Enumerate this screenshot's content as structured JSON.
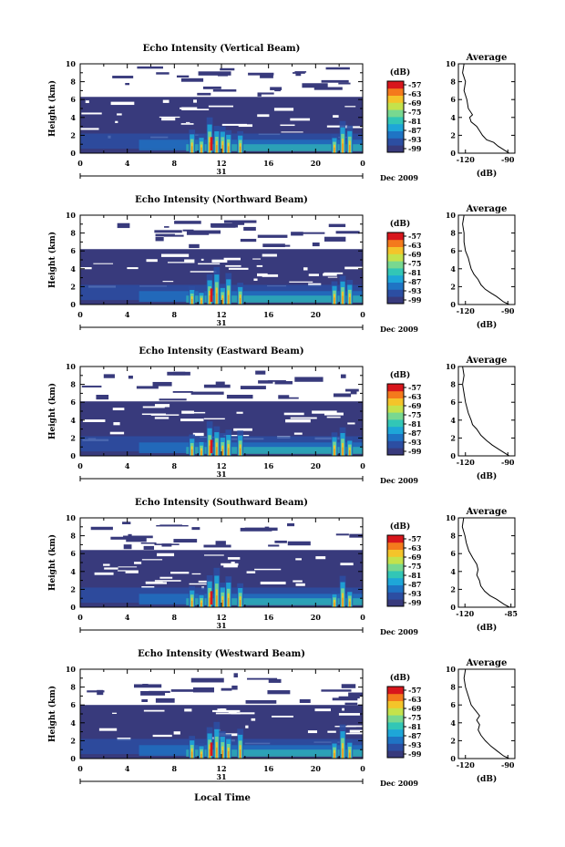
{
  "chart_data": {
    "type": "heatmap",
    "shared": {
      "ylabel": "Height (km)",
      "y_ticks": [
        "0",
        "2",
        "4",
        "6",
        "8",
        "10"
      ],
      "ylim": [
        0,
        10
      ],
      "x_ticks": [
        "0",
        "4",
        "8",
        "12",
        "16",
        "20",
        "0"
      ],
      "xlim": [
        0,
        24
      ],
      "day_label": "31",
      "date_label": "Dec 2009",
      "colorbar_unit": "(dB)",
      "colorbar_ticks": [
        "-57",
        "-63",
        "-69",
        "-75",
        "-81",
        "-87",
        "-93",
        "-99"
      ],
      "colors": [
        "#383a7c",
        "#2c4ea2",
        "#1f74c4",
        "#1ea6d8",
        "#32c6b6",
        "#78d890",
        "#c4e24c",
        "#f4c42a",
        "#f47a1c",
        "#d8161c"
      ],
      "avg_title": "Average",
      "avg_xlabel": "(dB)",
      "bottom_xlabel": "Local Time"
    },
    "panels": [
      {
        "title": "Echo Intensity (Vertical Beam)",
        "top_km": 6.3,
        "avg_xticks": [
          "-120",
          "-90"
        ],
        "avg_xlim": [
          -125,
          -85
        ],
        "avg_profile": [
          [
            -89,
            0
          ],
          [
            -92,
            0.3
          ],
          [
            -97,
            0.8
          ],
          [
            -100,
            1.2
          ],
          [
            -105,
            1.5
          ],
          [
            -108,
            2.0
          ],
          [
            -110,
            2.5
          ],
          [
            -112,
            3.0
          ],
          [
            -116,
            3.5
          ],
          [
            -117,
            4.0
          ],
          [
            -115,
            4.3
          ],
          [
            -118,
            5.0
          ],
          [
            -119,
            6.0
          ],
          [
            -121,
            7.0
          ],
          [
            -120,
            8.0
          ],
          [
            -122,
            9.0
          ],
          [
            -121,
            10.0
          ]
        ]
      },
      {
        "title": "Echo Intensity (Northward Beam)",
        "top_km": 6.2,
        "avg_xticks": [
          "-120",
          "-90"
        ],
        "avg_xlim": [
          -125,
          -85
        ],
        "avg_profile": [
          [
            -89,
            0
          ],
          [
            -93,
            0.3
          ],
          [
            -98,
            0.9
          ],
          [
            -102,
            1.3
          ],
          [
            -106,
            1.7
          ],
          [
            -109,
            2.2
          ],
          [
            -111,
            2.8
          ],
          [
            -114,
            3.4
          ],
          [
            -116,
            4.0
          ],
          [
            -117,
            4.6
          ],
          [
            -118,
            5.2
          ],
          [
            -120,
            6.0
          ],
          [
            -121,
            7.0
          ],
          [
            -121,
            8.0
          ],
          [
            -122,
            9.0
          ],
          [
            -121,
            10.0
          ]
        ]
      },
      {
        "title": "Echo Intensity (Eastward Beam)",
        "top_km": 6.1,
        "avg_xticks": [
          "-120",
          "-90"
        ],
        "avg_xlim": [
          -125,
          -85
        ],
        "avg_profile": [
          [
            -89,
            0
          ],
          [
            -92,
            0.3
          ],
          [
            -97,
            0.8
          ],
          [
            -101,
            1.2
          ],
          [
            -105,
            1.7
          ],
          [
            -109,
            2.3
          ],
          [
            -112,
            3.0
          ],
          [
            -115,
            3.5
          ],
          [
            -116,
            4.0
          ],
          [
            -118,
            4.8
          ],
          [
            -120,
            6.0
          ],
          [
            -121,
            7.0
          ],
          [
            -122,
            8.0
          ],
          [
            -121,
            9.0
          ],
          [
            -122,
            10.0
          ]
        ]
      },
      {
        "title": "Echo Intensity (Southward Beam)",
        "top_km": 6.4,
        "avg_xticks": [
          "-120",
          "-85"
        ],
        "avg_xlim": [
          -125,
          -82
        ],
        "avg_profile": [
          [
            -86,
            0
          ],
          [
            -90,
            0.3
          ],
          [
            -96,
            0.9
          ],
          [
            -101,
            1.3
          ],
          [
            -105,
            1.8
          ],
          [
            -108,
            2.4
          ],
          [
            -109,
            3.0
          ],
          [
            -111,
            3.6
          ],
          [
            -110,
            4.2
          ],
          [
            -111,
            4.8
          ],
          [
            -114,
            5.5
          ],
          [
            -117,
            6.3
          ],
          [
            -119,
            7.2
          ],
          [
            -120,
            8.0
          ],
          [
            -122,
            9.0
          ],
          [
            -121,
            10.0
          ]
        ]
      },
      {
        "title": "Echo Intensity (Westward Beam)",
        "top_km": 6.0,
        "avg_xticks": [
          "-120",
          "-90"
        ],
        "avg_xlim": [
          -125,
          -85
        ],
        "avg_profile": [
          [
            -89,
            0
          ],
          [
            -93,
            0.3
          ],
          [
            -98,
            0.9
          ],
          [
            -102,
            1.4
          ],
          [
            -106,
            2.0
          ],
          [
            -109,
            2.6
          ],
          [
            -111,
            3.2
          ],
          [
            -110,
            3.8
          ],
          [
            -112,
            4.3
          ],
          [
            -110,
            4.8
          ],
          [
            -113,
            5.4
          ],
          [
            -116,
            6.0
          ],
          [
            -118,
            7.0
          ],
          [
            -120,
            8.0
          ],
          [
            -121,
            9.0
          ],
          [
            -120,
            10.0
          ]
        ]
      }
    ]
  }
}
